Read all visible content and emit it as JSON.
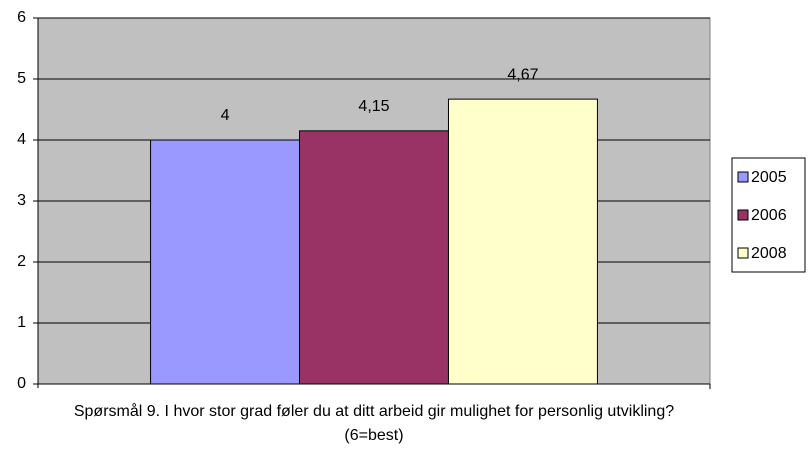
{
  "chart_data": {
    "type": "bar",
    "xlabel": "Spørsmål 9. I hvor stor grad føler du at ditt arbeid gir mulighet for personlig utvikling? (6=best)",
    "categories": [
      null
    ],
    "series": [
      {
        "name": "2005",
        "color": "#9999ff",
        "values": [
          4
        ],
        "value_labels": [
          "4"
        ]
      },
      {
        "name": "2006",
        "color": "#993366",
        "values": [
          4.15
        ],
        "value_labels": [
          "4,15"
        ]
      },
      {
        "name": "2008",
        "color": "#ffffcc",
        "values": [
          4.67
        ],
        "value_labels": [
          "4,67"
        ]
      }
    ],
    "ylim": [
      0,
      6
    ],
    "yticks": [
      0,
      1,
      2,
      3,
      4,
      5,
      6
    ],
    "grid": true,
    "plot_background": "#c0c0c0",
    "legend": "right"
  }
}
